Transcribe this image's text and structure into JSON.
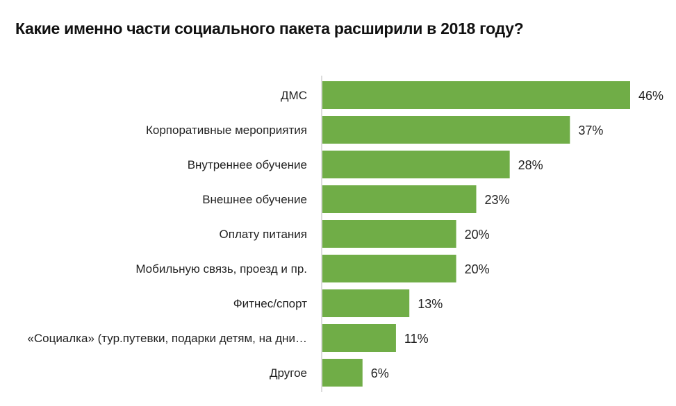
{
  "chart_data": {
    "type": "bar",
    "orientation": "horizontal",
    "title": "Какие именно части социального пакета расширили в 2018 году?",
    "categories": [
      "ДМС",
      "Корпоративные мероприятия",
      "Внутреннее обучение",
      "Внешнее обучение",
      "Оплату питания",
      "Мобильную связь, проезд и пр.",
      "Фитнес/спорт",
      "«Социалка» (тур.путевки, подарки детям, на дни…",
      "Другое"
    ],
    "values": [
      46,
      37,
      28,
      23,
      20,
      20,
      13,
      11,
      6
    ],
    "value_labels": [
      "46%",
      "37%",
      "28%",
      "23%",
      "20%",
      "20%",
      "13%",
      "11%",
      "6%"
    ],
    "unit": "%",
    "xlim": [
      0,
      46
    ],
    "grid": false,
    "legend": "none",
    "bar_color": "#70ad47",
    "axis_color": "#d0d0d0"
  }
}
